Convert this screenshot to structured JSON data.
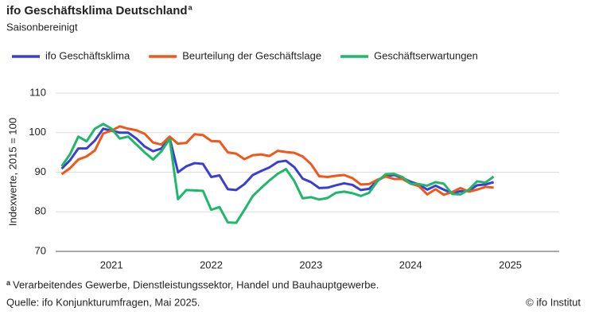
{
  "chart_data": {
    "type": "line",
    "title": "ifo Geschäftsklima Deutschland",
    "title_marker": "a",
    "subtitle": "Saisonbereinigt",
    "y_label": "Indexwerte, 2015 = 100",
    "footnote_marker": "a",
    "footnote": "Verarbeitendes Gewerbe, Dienstleistungssektor, Handel und Bauhauptgewerbe.",
    "source": "Quelle: ifo Konjunkturumfragen, Mai 2025.",
    "copyright": "© ifo Institut",
    "x": [
      2021,
      2021.083,
      2021.167,
      2021.25,
      2021.333,
      2021.417,
      2021.5,
      2021.583,
      2021.667,
      2021.75,
      2021.833,
      2021.917,
      2022,
      2022.083,
      2022.167,
      2022.25,
      2022.333,
      2022.417,
      2022.5,
      2022.583,
      2022.667,
      2022.75,
      2022.833,
      2022.917,
      2023,
      2023.083,
      2023.167,
      2023.25,
      2023.333,
      2023.417,
      2023.5,
      2023.583,
      2023.667,
      2023.75,
      2023.833,
      2023.917,
      2024,
      2024.083,
      2024.167,
      2024.25,
      2024.333,
      2024.417,
      2024.5,
      2024.583,
      2024.667,
      2024.75,
      2024.833,
      2024.917,
      2025,
      2025.083,
      2025.167,
      2025.25,
      2025.333
    ],
    "series": [
      {
        "name": "ifo Geschäftsklima",
        "color": "#3a3fd1",
        "values": [
          90.9,
          93,
          96,
          96,
          98,
          101,
          100.5,
          100,
          100,
          98.5,
          96.5,
          95.3,
          96,
          98.7,
          90,
          91.5,
          92.3,
          92.1,
          88.8,
          89.2,
          85.7,
          85.5,
          87,
          89.3,
          90.3,
          91.2,
          92.6,
          92.9,
          91.3,
          88.4,
          87.5,
          86,
          86.1,
          86.7,
          87.2,
          86.8,
          85.5,
          85.8,
          87.9,
          89,
          89.3,
          88.6,
          87.6,
          86.9,
          85.6,
          86.6,
          85.6,
          84.7,
          85.2,
          85.3,
          86.7,
          86.9,
          87.5
        ]
      },
      {
        "name": "Beurteilung der Geschäftslage",
        "color": "#f0581a",
        "values": [
          89.5,
          91,
          93.2,
          94,
          95.5,
          99.8,
          100.5,
          101.6,
          101,
          100.6,
          99.7,
          97.5,
          97,
          99,
          97.2,
          97.4,
          99.6,
          99.4,
          97.9,
          97.8,
          95,
          94.7,
          93.3,
          94.3,
          94.5,
          94.1,
          95.4,
          95.1,
          94.9,
          94,
          92.1,
          89,
          88.8,
          89.1,
          89.3,
          88.5,
          86.9,
          87,
          88.1,
          88.9,
          88.3,
          88.3,
          87.1,
          86.5,
          84.4,
          85.7,
          84.3,
          85,
          86,
          85.1,
          85.6,
          86.3,
          86.1
        ]
      },
      {
        "name": "Geschäftserwartungen",
        "color": "#1db86a",
        "values": [
          91.5,
          94.5,
          99,
          97.8,
          101,
          102.2,
          101,
          98.5,
          99,
          97,
          95,
          93.2,
          95.3,
          98.4,
          83.2,
          85.5,
          85.4,
          85.3,
          80.5,
          81.2,
          77.3,
          77.2,
          80.5,
          84,
          86,
          87.9,
          89.6,
          90.8,
          87.8,
          83.4,
          83.7,
          83.1,
          83.5,
          84.8,
          85.1,
          84.7,
          84,
          84.8,
          87.7,
          89.5,
          89.6,
          88.8,
          87.1,
          87,
          86.6,
          87.5,
          87.1,
          84.5,
          84.4,
          85.6,
          87.7,
          87.4,
          88.9
        ]
      }
    ],
    "xlim": [
      2020.94,
      2025.99
    ],
    "xticks": [
      {
        "value": 2021.5,
        "label": "2021"
      },
      {
        "value": 2022.5,
        "label": "2022"
      },
      {
        "value": 2023.5,
        "label": "2023"
      },
      {
        "value": 2024.5,
        "label": "2024"
      },
      {
        "value": 2025.5,
        "label": "2025"
      }
    ],
    "ylim": [
      70,
      110
    ],
    "yticks": [
      70,
      80,
      90,
      100,
      110
    ],
    "grid": true,
    "legend": "top"
  }
}
